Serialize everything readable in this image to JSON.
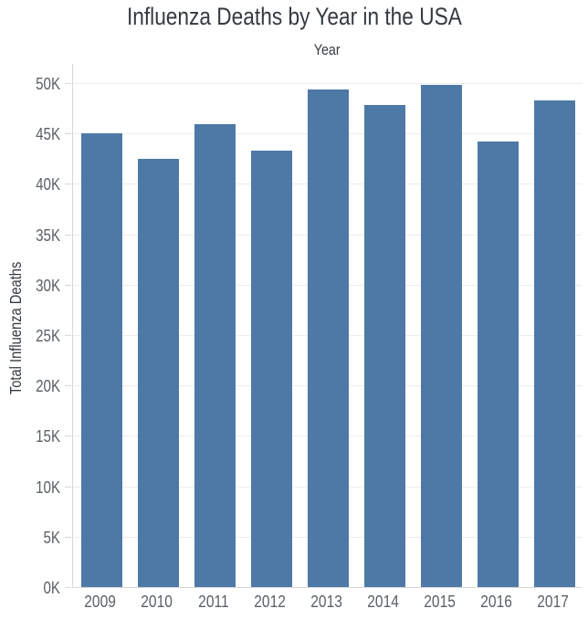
{
  "chart_data": {
    "type": "bar",
    "title": "Influenza Deaths by Year in the USA",
    "xlabel": "Year",
    "ylabel": "Total Influenza Deaths",
    "categories": [
      "2009",
      "2010",
      "2011",
      "2012",
      "2013",
      "2014",
      "2015",
      "2016",
      "2017"
    ],
    "values": [
      45000,
      42500,
      45900,
      43300,
      49400,
      47800,
      49800,
      44200,
      48300
    ],
    "y_ticks": [
      {
        "label": "0K",
        "value": 0
      },
      {
        "label": "5K",
        "value": 5000
      },
      {
        "label": "10K",
        "value": 10000
      },
      {
        "label": "15K",
        "value": 15000
      },
      {
        "label": "20K",
        "value": 20000
      },
      {
        "label": "25K",
        "value": 25000
      },
      {
        "label": "30K",
        "value": 30000
      },
      {
        "label": "35K",
        "value": 35000
      },
      {
        "label": "40K",
        "value": 40000
      },
      {
        "label": "45K",
        "value": 45000
      },
      {
        "label": "50K",
        "value": 50000
      }
    ],
    "ylim": [
      0,
      50000
    ],
    "grid": true,
    "legend": "none",
    "colors": {
      "bar": "#4e79a7",
      "title_text": "#343a3f",
      "tick_text": "#5b6166",
      "gridline": "#ececec",
      "axis_line": "#d7d7d7",
      "background": "#ffffff"
    }
  }
}
